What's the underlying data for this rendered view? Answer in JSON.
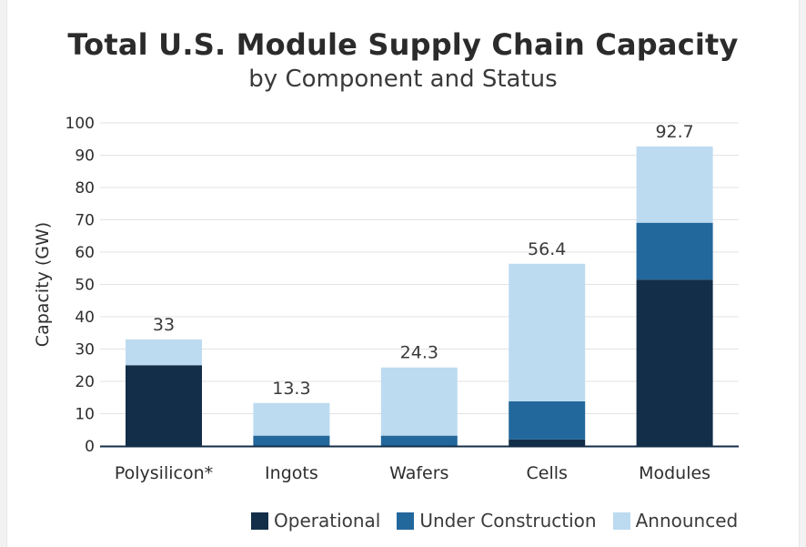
{
  "chart_data": {
    "type": "bar",
    "stacked": true,
    "title": "Total U.S. Module Supply Chain Capacity",
    "subtitle": "by Component and Status",
    "ylabel": "Capacity (GW)",
    "xlabel": "",
    "ylim": [
      0,
      100
    ],
    "yticks": [
      0,
      10,
      20,
      30,
      40,
      50,
      60,
      70,
      80,
      90,
      100
    ],
    "grid": true,
    "legend_position": "bottom-right",
    "categories": [
      "Polysilicon*",
      "Ingots",
      "Wafers",
      "Cells",
      "Modules"
    ],
    "series": [
      {
        "name": "Operational",
        "color": "#132e48",
        "values": [
          25,
          0,
          0,
          2,
          51.5
        ]
      },
      {
        "name": "Under Construction",
        "color": "#23689c",
        "values": [
          0,
          3.2,
          3.2,
          11.8,
          17.6
        ]
      },
      {
        "name": "Announced",
        "color": "#bddbf0",
        "values": [
          8,
          10.1,
          21.1,
          42.6,
          23.6
        ]
      }
    ],
    "totals": [
      "33",
      "13.3",
      "24.3",
      "56.4",
      "92.7"
    ]
  }
}
